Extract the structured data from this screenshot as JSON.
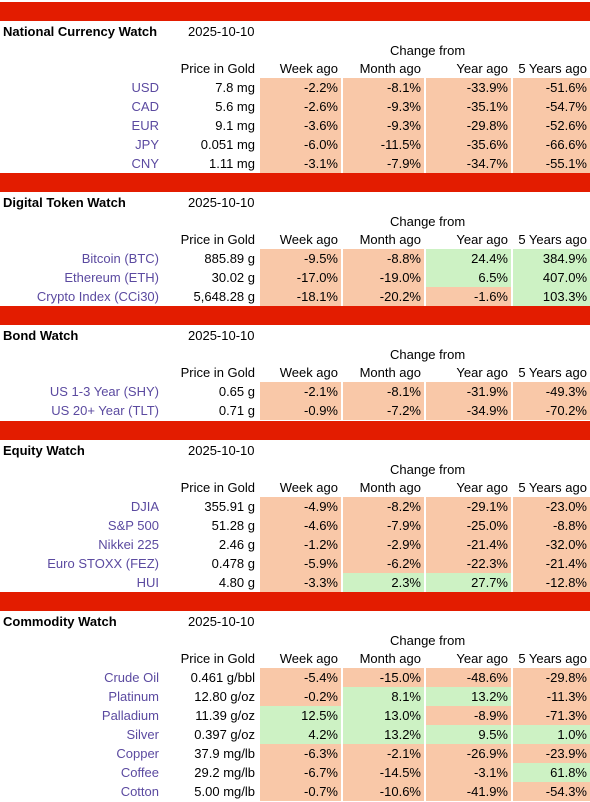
{
  "colors": {
    "bar": "#e31c00",
    "negative": "#f9c8a8",
    "positive": "#cdf2c4",
    "label": "#5b4aa0"
  },
  "headers": {
    "change_from": "Change from",
    "price": "Price in Gold",
    "week": "Week ago",
    "month": "Month ago",
    "year": "Year ago",
    "five_years": "5 Years ago"
  },
  "sections": [
    {
      "title": "National Currency Watch",
      "date": "2025-10-10",
      "rows": [
        {
          "label": "USD",
          "price": "7.8 mg",
          "week": "-2.2%",
          "month": "-8.1%",
          "year": "-33.9%",
          "five": "-51.6%"
        },
        {
          "label": "CAD",
          "price": "5.6 mg",
          "week": "-2.6%",
          "month": "-9.3%",
          "year": "-35.1%",
          "five": "-54.7%"
        },
        {
          "label": "EUR",
          "price": "9.1 mg",
          "week": "-3.6%",
          "month": "-9.3%",
          "year": "-29.8%",
          "five": "-52.6%"
        },
        {
          "label": "JPY",
          "price": "0.051 mg",
          "week": "-6.0%",
          "month": "-11.5%",
          "year": "-35.6%",
          "five": "-66.6%"
        },
        {
          "label": "CNY",
          "price": "1.11 mg",
          "week": "-3.1%",
          "month": "-7.9%",
          "year": "-34.7%",
          "five": "-55.1%"
        }
      ]
    },
    {
      "title": "Digital Token Watch",
      "date": "2025-10-10",
      "rows": [
        {
          "label": "Bitcoin (BTC)",
          "price": "885.89 g",
          "week": "-9.5%",
          "month": "-8.8%",
          "year": "24.4%",
          "five": "384.9%"
        },
        {
          "label": "Ethereum (ETH)",
          "price": "30.02 g",
          "week": "-17.0%",
          "month": "-19.0%",
          "year": "6.5%",
          "five": "407.0%"
        },
        {
          "label": "Crypto Index (CCi30)",
          "price": "5,648.28 g",
          "week": "-18.1%",
          "month": "-20.2%",
          "year": "-1.6%",
          "five": "103.3%"
        }
      ]
    },
    {
      "title": "Bond Watch",
      "date": "2025-10-10",
      "rows": [
        {
          "label": "US 1-3 Year (SHY)",
          "price": "0.65 g",
          "week": "-2.1%",
          "month": "-8.1%",
          "year": "-31.9%",
          "five": "-49.3%"
        },
        {
          "label": "US 20+ Year (TLT)",
          "price": "0.71 g",
          "week": "-0.9%",
          "month": "-7.2%",
          "year": "-34.9%",
          "five": "-70.2%"
        }
      ]
    },
    {
      "title": "Equity Watch",
      "date": "2025-10-10",
      "rows": [
        {
          "label": "DJIA",
          "price": "355.91 g",
          "week": "-4.9%",
          "month": "-8.2%",
          "year": "-29.1%",
          "five": "-23.0%"
        },
        {
          "label": "S&P 500",
          "price": "51.28 g",
          "week": "-4.6%",
          "month": "-7.9%",
          "year": "-25.0%",
          "five": "-8.8%"
        },
        {
          "label": "Nikkei 225",
          "price": "2.46 g",
          "week": "-1.2%",
          "month": "-2.9%",
          "year": "-21.4%",
          "five": "-32.0%"
        },
        {
          "label": "Euro STOXX (FEZ)",
          "price": "0.478 g",
          "week": "-5.9%",
          "month": "-6.2%",
          "year": "-22.3%",
          "five": "-21.4%"
        },
        {
          "label": "HUI",
          "price": "4.80 g",
          "week": "-3.3%",
          "month": "2.3%",
          "year": "27.7%",
          "five": "-12.8%"
        }
      ]
    },
    {
      "title": "Commodity Watch",
      "date": "2025-10-10",
      "rows": [
        {
          "label": "Crude Oil",
          "price": "0.461 g/bbl",
          "week": "-5.4%",
          "month": "-15.0%",
          "year": "-48.6%",
          "five": "-29.8%"
        },
        {
          "label": "Platinum",
          "price": "12.80 g/oz",
          "week": "-0.2%",
          "month": "8.1%",
          "year": "13.2%",
          "five": "-11.3%"
        },
        {
          "label": "Palladium",
          "price": "11.39 g/oz",
          "week": "12.5%",
          "month": "13.0%",
          "year": "-8.9%",
          "five": "-71.3%"
        },
        {
          "label": "Silver",
          "price": "0.397 g/oz",
          "week": "4.2%",
          "month": "13.2%",
          "year": "9.5%",
          "five": "1.0%"
        },
        {
          "label": "Copper",
          "price": "37.9 mg/lb",
          "week": "-6.3%",
          "month": "-2.1%",
          "year": "-26.9%",
          "five": "-23.9%"
        },
        {
          "label": "Coffee",
          "price": "29.2 mg/lb",
          "week": "-6.7%",
          "month": "-14.5%",
          "year": "-3.1%",
          "five": "61.8%"
        },
        {
          "label": "Cotton",
          "price": "5.00 mg/lb",
          "week": "-0.7%",
          "month": "-10.6%",
          "year": "-41.9%",
          "five": "-54.3%"
        }
      ]
    }
  ]
}
